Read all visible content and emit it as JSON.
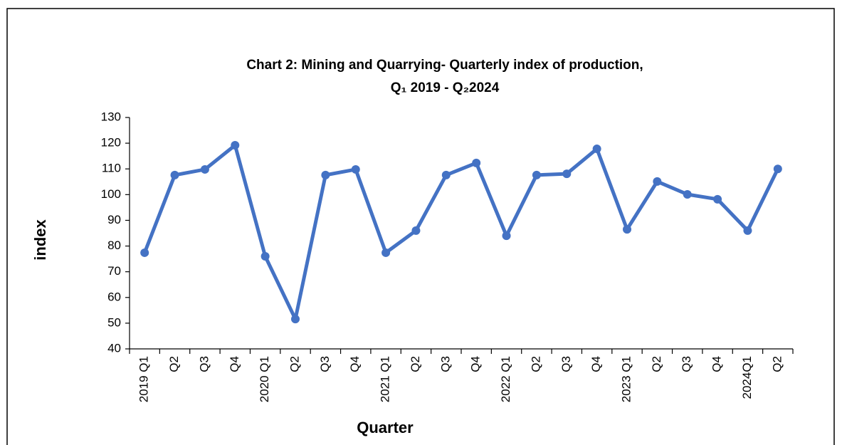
{
  "chart_data": {
    "type": "line",
    "title": "Chart 2: Mining and Quarrying- Quarterly index of production,",
    "subtitle": "Q₁ 2019 - Q₂2024",
    "x_label": "Quarter",
    "y_label": "index",
    "categories": [
      "2019 Q1",
      "Q2",
      "Q3",
      "Q4",
      "2020 Q1",
      "Q2",
      "Q3",
      "Q4",
      "2021 Q1",
      "Q2",
      "Q3",
      "Q4",
      "2022 Q1",
      "Q2",
      "Q3",
      "Q4",
      "2023 Q1",
      "Q2",
      "Q3",
      "Q4",
      "2024Q1",
      "Q2"
    ],
    "series": [
      {
        "color": "#4472c4",
        "values": [
          77.4,
          107.6,
          109.8,
          119.2,
          76.0,
          51.6,
          107.6,
          109.8,
          77.4,
          86.0,
          107.6,
          112.3,
          84.0,
          107.6,
          108.1,
          117.8,
          86.5,
          105.1,
          100.1,
          98.2,
          86.0,
          110.0
        ]
      }
    ],
    "ylim": [
      40,
      130
    ],
    "yticks": [
      40,
      50,
      60,
      70,
      80,
      90,
      100,
      110,
      120,
      130
    ],
    "grid": false
  }
}
